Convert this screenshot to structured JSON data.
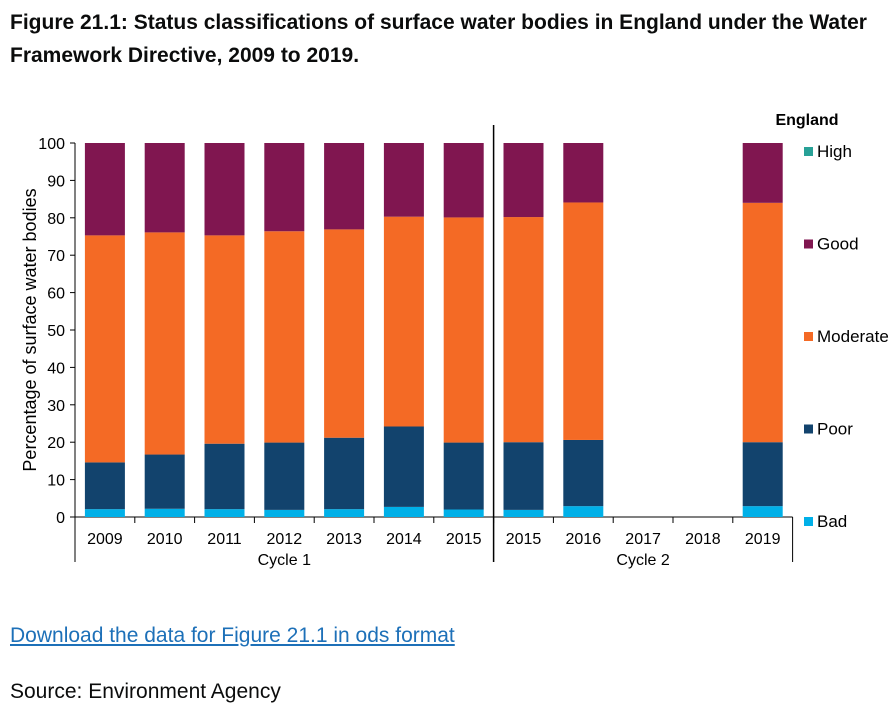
{
  "chart_data": {
    "type": "bar",
    "stacked": true,
    "title": "Figure 21.1: Status classifications of surface water bodies in England under the Water Framework Directive, 2009 to 2019.",
    "ylabel": "Percentage of surface water bodies",
    "ylim": [
      0,
      100
    ],
    "yticks": [
      0,
      10,
      20,
      30,
      40,
      50,
      60,
      70,
      80,
      90,
      100
    ],
    "categories": [
      "2009",
      "2010",
      "2011",
      "2012",
      "2013",
      "2014",
      "2015",
      "2015",
      "2016",
      "2017",
      "2018",
      "2019"
    ],
    "groups": [
      {
        "label": "Cycle 1",
        "categories": [
          "2009",
          "2010",
          "2011",
          "2012",
          "2013",
          "2014",
          "2015"
        ]
      },
      {
        "label": "Cycle 2",
        "categories": [
          "2015",
          "2016",
          "2017",
          "2018",
          "2019"
        ]
      }
    ],
    "legend_title": "England",
    "legend_placement": "right",
    "series": [
      {
        "name": "Bad",
        "color": "#00b0e8",
        "values": [
          2.1,
          2.2,
          2.1,
          1.9,
          2.1,
          2.7,
          2.0,
          1.9,
          2.9,
          null,
          null,
          2.9
        ]
      },
      {
        "name": "Poor",
        "color": "#12436d",
        "values": [
          12.5,
          14.5,
          17.5,
          18.0,
          19.1,
          21.5,
          17.9,
          18.1,
          17.7,
          null,
          null,
          17.1
        ]
      },
      {
        "name": "Moderate",
        "color": "#f46a25",
        "values": [
          60.7,
          59.4,
          55.7,
          56.5,
          55.7,
          56.1,
          60.2,
          60.2,
          63.5,
          null,
          null,
          64.0
        ]
      },
      {
        "name": "Good",
        "color": "#801650",
        "values": [
          24.7,
          23.9,
          24.7,
          23.6,
          23.1,
          19.7,
          19.9,
          19.8,
          15.9,
          null,
          null,
          16.0
        ]
      },
      {
        "name": "High",
        "color": "#28a197",
        "values": [
          0,
          0,
          0,
          0,
          0,
          0,
          0,
          0,
          0,
          null,
          null,
          0
        ]
      }
    ]
  },
  "footer": {
    "download_link": "Download the data for Figure 21.1 in ods format",
    "source": "Source: Environment Agency"
  }
}
